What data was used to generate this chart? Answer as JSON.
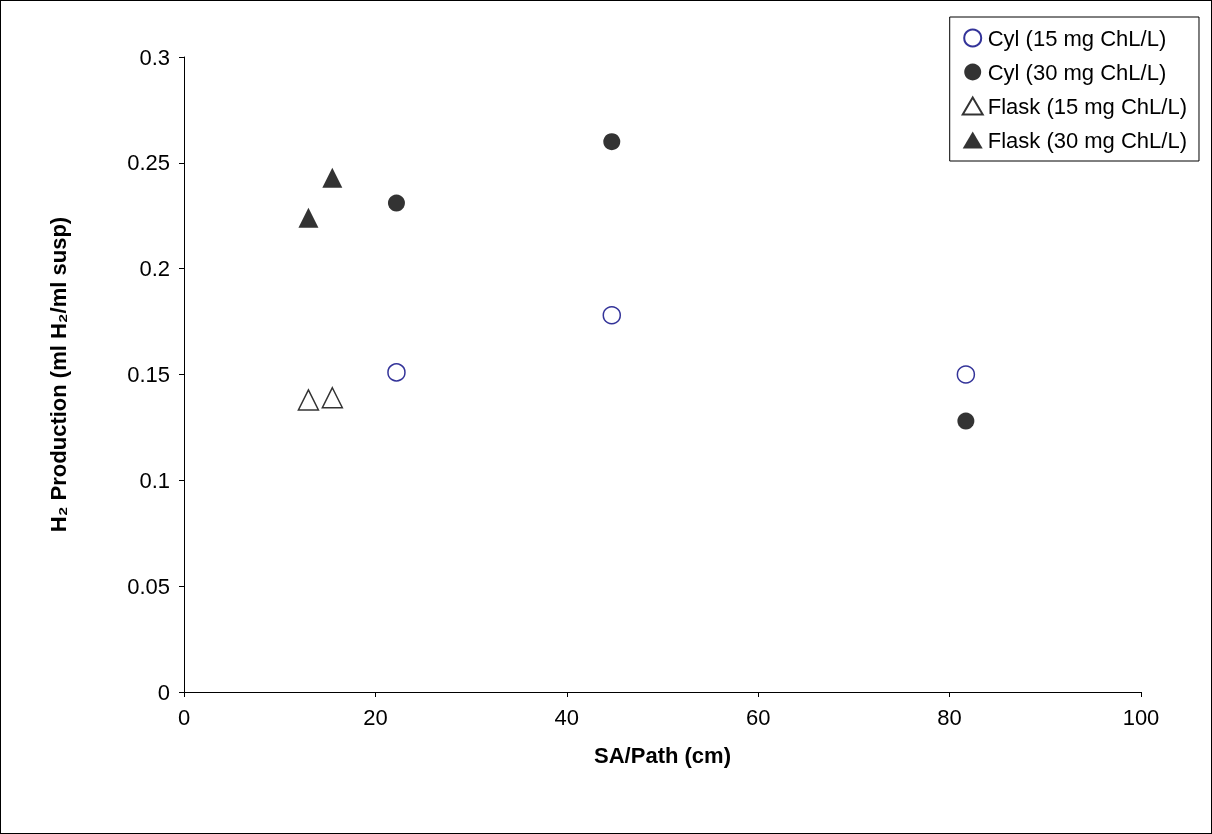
{
  "chart_data": {
    "type": "scatter",
    "xlabel": "SA/Path (cm)",
    "ylabel": "H₂ Production (ml H₂/ml susp)",
    "xlim": [
      0,
      100
    ],
    "xticks": [
      0,
      20,
      40,
      60,
      80,
      100
    ],
    "ylim": [
      0,
      0.3
    ],
    "yticks": [
      0,
      0.05,
      0.1,
      0.15,
      0.2,
      0.25,
      0.3
    ],
    "grid": false,
    "legend": "top right",
    "series": [
      {
        "name": "Cyl (15 mg ChL/L)",
        "color": "#000080",
        "marker": "circle",
        "x": [
          22.2,
          44.7,
          81.7
        ],
        "values": [
          0.151,
          0.178,
          0.15
        ]
      },
      {
        "name": "Cyl (30 mg ChL/L)",
        "color": "#000000",
        "marker": "circle",
        "x": [
          22.2,
          44.7,
          81.7
        ],
        "values": [
          0.231,
          0.26,
          0.128
        ]
      },
      {
        "name": "Flask (15 mg ChL/L)",
        "color": "#000000",
        "marker": "triangle",
        "x": [
          13,
          15.5
        ],
        "values": [
          0.138,
          0.139
        ]
      },
      {
        "name": "Flask (30 mg ChL/L)",
        "color": "#000000",
        "marker": "triangle",
        "x": [
          13,
          15.5
        ],
        "values": [
          0.224,
          0.243
        ]
      }
    ]
  }
}
